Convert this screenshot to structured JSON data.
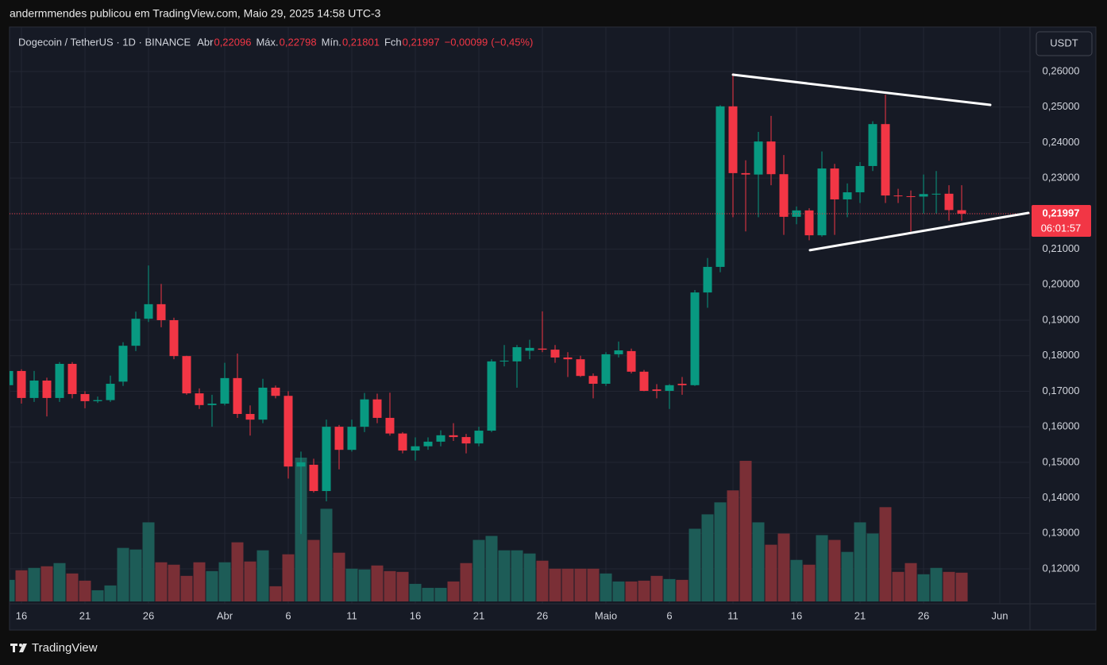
{
  "header": {
    "byline": "andermmendes publicou em TradingView.com, Maio 29, 2025 14:58 UTC-3"
  },
  "footer": {
    "brand": "TradingView"
  },
  "chart_data": {
    "type": "candlestick",
    "symbol": "Dogecoin / TetherUS · 1D · BINANCE",
    "legend_values": [
      {
        "name": "Abr",
        "value": {
          "value": 0.22096,
          "label": "0,22096"
        }
      },
      {
        "name": "Máx.",
        "value": {
          "value": 0.22798,
          "label": "0,22798"
        }
      },
      {
        "name": "Mín.",
        "value": {
          "value": 0.21801,
          "label": "0,21801"
        }
      },
      {
        "name": "Fch",
        "value": {
          "value": 0.21997,
          "label": "0,21997"
        }
      }
    ],
    "change": {
      "value": -0.00099,
      "label": "−0,00099"
    },
    "change_percent": {
      "value": -0.45,
      "label": "(−0,45%)"
    },
    "currency": "USDT",
    "open": [
      0.1717,
      0.1757,
      0.1681,
      0.173,
      0.1681,
      0.1777,
      0.1692,
      0.1672,
      0.1675,
      0.1727,
      0.1828,
      0.1904,
      0.1945,
      0.19,
      0.1799,
      0.1694,
      0.1661,
      0.1665,
      0.1737,
      0.1636,
      0.162,
      0.171,
      0.1687,
      0.1488,
      0.1493,
      0.1419,
      0.16,
      0.1535,
      0.16,
      0.1677,
      0.1625,
      0.1581,
      0.1533,
      0.1545,
      0.1558,
      0.1576,
      0.1571,
      0.1553,
      0.1589,
      0.1784,
      0.1784,
      0.1814,
      0.182,
      0.1817,
      0.1795,
      0.179,
      0.1743,
      0.1721,
      0.1804,
      0.1813,
      0.1755,
      0.1705,
      0.1701,
      0.1721,
      0.1717,
      0.1978,
      0.205,
      0.2502,
      0.2314,
      0.231,
      0.2403,
      0.2311,
      0.2191,
      0.2209,
      0.2139,
      0.2327,
      0.224,
      0.226,
      0.2334,
      0.2452,
      0.2251,
      0.2249,
      0.2248,
      0.2255,
      0.2256,
      0.22096
    ],
    "high": [
      0.1763,
      0.1762,
      0.1757,
      0.1738,
      0.1782,
      0.1782,
      0.17,
      0.1685,
      0.1744,
      0.1838,
      0.1924,
      0.2054,
      0.2002,
      0.1907,
      0.18,
      0.1708,
      0.169,
      0.178,
      0.1806,
      0.166,
      0.1735,
      0.1716,
      0.17,
      0.153,
      0.151,
      0.162,
      0.1605,
      0.162,
      0.1695,
      0.1693,
      0.1696,
      0.1585,
      0.157,
      0.157,
      0.159,
      0.161,
      0.158,
      0.16,
      0.179,
      0.183,
      0.183,
      0.1845,
      0.1925,
      0.183,
      0.181,
      0.18,
      0.175,
      0.181,
      0.184,
      0.182,
      0.176,
      0.172,
      0.172,
      0.174,
      0.1985,
      0.2075,
      0.2505,
      0.2595,
      0.235,
      0.243,
      0.2475,
      0.2365,
      0.222,
      0.2215,
      0.2375,
      0.234,
      0.2285,
      0.2345,
      0.246,
      0.2535,
      0.227,
      0.2265,
      0.231,
      0.232,
      0.228,
      0.22798
    ],
    "low": [
      0.17,
      0.1665,
      0.167,
      0.1629,
      0.167,
      0.168,
      0.1652,
      0.1667,
      0.167,
      0.1715,
      0.1813,
      0.1895,
      0.188,
      0.179,
      0.169,
      0.165,
      0.16,
      0.166,
      0.1625,
      0.1575,
      0.161,
      0.168,
      0.1454,
      0.1298,
      0.1415,
      0.139,
      0.148,
      0.153,
      0.1585,
      0.161,
      0.1575,
      0.1525,
      0.1505,
      0.1535,
      0.1545,
      0.156,
      0.1525,
      0.1545,
      0.1585,
      0.177,
      0.171,
      0.179,
      0.181,
      0.178,
      0.174,
      0.174,
      0.168,
      0.1715,
      0.1795,
      0.175,
      0.17,
      0.168,
      0.165,
      0.169,
      0.1715,
      0.1935,
      0.2035,
      0.219,
      0.215,
      0.219,
      0.228,
      0.214,
      0.217,
      0.2125,
      0.2135,
      0.214,
      0.219,
      0.223,
      0.232,
      0.223,
      0.223,
      0.215,
      0.22,
      0.22,
      0.218,
      0.21801
    ],
    "close": [
      0.1757,
      0.1681,
      0.173,
      0.1681,
      0.1777,
      0.1692,
      0.1672,
      0.1675,
      0.1721,
      0.1828,
      0.1904,
      0.1945,
      0.19,
      0.1799,
      0.1694,
      0.1661,
      0.1665,
      0.1737,
      0.1636,
      0.162,
      0.171,
      0.1687,
      0.1488,
      0.15,
      0.1419,
      0.16,
      0.1535,
      0.16,
      0.1677,
      0.1625,
      0.1581,
      0.1533,
      0.1545,
      0.1558,
      0.1576,
      0.1571,
      0.1553,
      0.1589,
      0.1784,
      0.1786,
      0.1824,
      0.1822,
      0.1817,
      0.1795,
      0.179,
      0.1743,
      0.1721,
      0.1804,
      0.1815,
      0.1755,
      0.1701,
      0.1701,
      0.1717,
      0.1717,
      0.1978,
      0.205,
      0.2502,
      0.2314,
      0.231,
      0.2403,
      0.2311,
      0.2191,
      0.2209,
      0.2139,
      0.2327,
      0.224,
      0.226,
      0.2334,
      0.2452,
      0.2251,
      0.2249,
      0.2248,
      0.2255,
      0.2256,
      0.221,
      0.21997
    ],
    "volume": [
      27,
      39,
      42,
      44,
      48,
      35,
      26,
      14,
      20,
      67,
      65,
      99,
      49,
      46,
      32,
      49,
      38,
      49,
      74,
      50,
      64,
      19,
      59,
      180,
      77,
      116,
      61,
      41,
      40,
      45,
      38,
      37,
      22,
      17,
      17,
      25,
      48,
      77,
      82,
      64,
      64,
      60,
      51,
      41,
      41,
      41,
      41,
      35,
      25,
      25,
      26,
      32,
      28,
      27,
      91,
      109,
      124,
      139,
      176,
      99,
      71,
      85,
      52,
      46,
      83,
      77,
      62,
      99,
      85,
      118,
      37,
      48,
      34,
      42,
      37,
      36
    ],
    "colors": {
      "up": "#089981",
      "down": "#f23645",
      "volume_up": "#1d5c57",
      "volume_down": "#7a2f36",
      "trendline": "#ffffff"
    },
    "ylim": [
      0.11015,
      0.27253
    ],
    "yticks": [
      {
        "value": 0.26,
        "label": "0,26000"
      },
      {
        "value": 0.25,
        "label": "0,25000"
      },
      {
        "value": 0.24,
        "label": "0,24000"
      },
      {
        "value": 0.23,
        "label": "0,23000"
      },
      {
        "value": 0.22,
        "label": "0,22000"
      },
      {
        "value": 0.21,
        "label": "0,21000"
      },
      {
        "value": 0.2,
        "label": "0,20000"
      },
      {
        "value": 0.19,
        "label": "0,19000"
      },
      {
        "value": 0.18,
        "label": "0,18000"
      },
      {
        "value": 0.17,
        "label": "0,17000"
      },
      {
        "value": 0.16,
        "label": "0,16000"
      },
      {
        "value": 0.15,
        "label": "0,15000"
      },
      {
        "value": 0.14,
        "label": "0,14000"
      },
      {
        "value": 0.13,
        "label": "0,13000"
      },
      {
        "value": 0.12,
        "label": "0,12000"
      }
    ],
    "xlim": [
      0,
      80.375
    ],
    "xticks": [
      {
        "value": 1,
        "label": "16"
      },
      {
        "value": 6,
        "label": "21"
      },
      {
        "value": 11,
        "label": "26"
      },
      {
        "value": 17,
        "label": "Abr"
      },
      {
        "value": 22,
        "label": "6"
      },
      {
        "value": 27,
        "label": "11"
      },
      {
        "value": 32,
        "label": "16"
      },
      {
        "value": 37,
        "label": "21"
      },
      {
        "value": 42,
        "label": "26"
      },
      {
        "value": 47,
        "label": "Maio"
      },
      {
        "value": 52,
        "label": "6"
      },
      {
        "value": 57,
        "label": "11"
      },
      {
        "value": 62,
        "label": "16"
      },
      {
        "value": 67,
        "label": "21"
      },
      {
        "value": 72,
        "label": "26"
      },
      {
        "value": 78,
        "label": "Jun"
      }
    ],
    "grid": true,
    "last_price": {
      "value": 0.21997,
      "label": "0,21997"
    },
    "countdown": "06:01:57",
    "trendlines": [
      {
        "x": [
          57,
          77.25
        ],
        "y": [
          0.2591,
          0.2506
        ]
      },
      {
        "x": [
          63.06,
          80.25
        ],
        "y": [
          0.2097,
          0.2202
        ]
      }
    ]
  }
}
